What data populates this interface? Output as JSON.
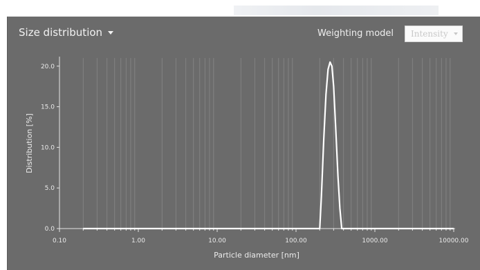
{
  "header": {
    "mode_label": "Size distribution",
    "weighting_label": "Weighting model",
    "weighting_value": "Intensity"
  },
  "chart_data": {
    "type": "line",
    "xlabel": "Particle diameter [nm]",
    "ylabel": "Distribution [%]",
    "xscale": "log",
    "xlim": [
      0.1,
      10000
    ],
    "ylim": [
      0,
      21
    ],
    "x_ticks": [
      0.1,
      1,
      10,
      100,
      1000,
      10000
    ],
    "x_tick_labels": [
      "0.10",
      "1.00",
      "10.00",
      "100.00",
      "1000.00",
      "10000.00"
    ],
    "y_ticks": [
      0,
      5,
      10,
      15,
      20
    ],
    "y_tick_labels": [
      "0.0",
      "5.0",
      "10.0",
      "15.0",
      "20.0"
    ],
    "grid": "vertical",
    "series": [
      {
        "x": [
          0.2,
          100,
          200,
          210,
          225,
          240,
          255,
          270,
          285,
          300,
          320,
          340,
          360,
          380,
          10000
        ],
        "y": [
          0,
          0,
          0,
          4.0,
          11.0,
          16.5,
          19.6,
          20.5,
          20.0,
          17.5,
          12.0,
          6.5,
          2.5,
          0,
          0
        ]
      }
    ]
  }
}
